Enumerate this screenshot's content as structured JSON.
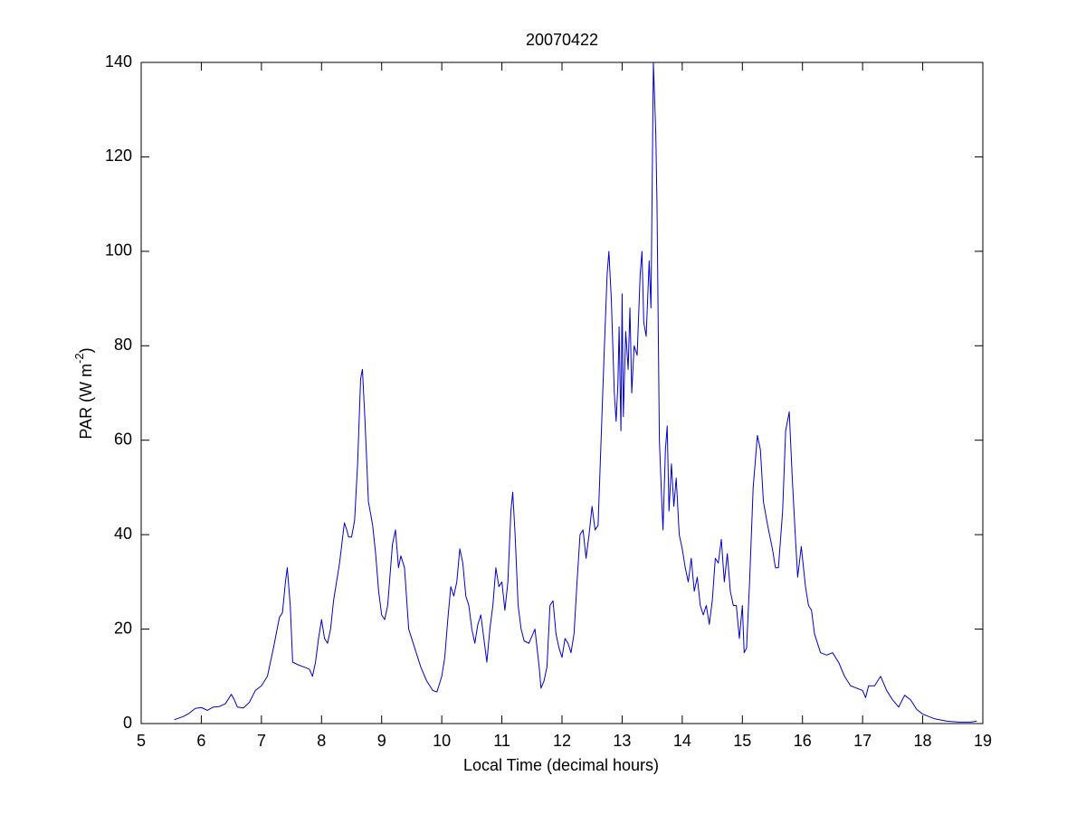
{
  "chart_data": {
    "type": "line",
    "title": "20070422",
    "xlabel": "Local Time (decimal hours)",
    "ylabel": {
      "base": "PAR (W m",
      "sup": "-2",
      "close": ")"
    },
    "xlim": [
      5,
      19
    ],
    "xticks": [
      5,
      6,
      7,
      8,
      9,
      10,
      11,
      12,
      13,
      14,
      15,
      16,
      17,
      18,
      19
    ],
    "ylim": [
      0,
      140
    ],
    "yticks": [
      0,
      20,
      40,
      60,
      80,
      100,
      120,
      140
    ],
    "grid": false,
    "color": "#0000cc",
    "x": [
      5.55,
      5.7,
      5.8,
      5.9,
      6.0,
      6.1,
      6.2,
      6.3,
      6.4,
      6.5,
      6.55,
      6.6,
      6.7,
      6.8,
      6.9,
      7.0,
      7.1,
      7.2,
      7.3,
      7.35,
      7.4,
      7.43,
      7.48,
      7.52,
      7.6,
      7.7,
      7.8,
      7.85,
      7.9,
      7.95,
      8.0,
      8.05,
      8.1,
      8.15,
      8.2,
      8.3,
      8.38,
      8.42,
      8.45,
      8.5,
      8.55,
      8.6,
      8.65,
      8.68,
      8.72,
      8.78,
      8.85,
      8.9,
      8.95,
      9.0,
      9.05,
      9.1,
      9.18,
      9.23,
      9.28,
      9.32,
      9.38,
      9.45,
      9.55,
      9.65,
      9.75,
      9.85,
      9.92,
      10.0,
      10.05,
      10.1,
      10.15,
      10.2,
      10.25,
      10.3,
      10.35,
      10.4,
      10.45,
      10.5,
      10.55,
      10.6,
      10.65,
      10.7,
      10.75,
      10.8,
      10.85,
      10.9,
      10.95,
      11.0,
      11.05,
      11.1,
      11.15,
      11.18,
      11.22,
      11.27,
      11.32,
      11.37,
      11.45,
      11.55,
      11.62,
      11.65,
      11.7,
      11.75,
      11.8,
      11.85,
      11.9,
      11.95,
      12.0,
      12.05,
      12.1,
      12.15,
      12.2,
      12.25,
      12.3,
      12.35,
      12.4,
      12.45,
      12.5,
      12.55,
      12.6,
      12.65,
      12.7,
      12.75,
      12.78,
      12.82,
      12.87,
      12.9,
      12.93,
      12.95,
      12.98,
      13.0,
      13.02,
      13.06,
      13.1,
      13.13,
      13.16,
      13.2,
      13.25,
      13.3,
      13.33,
      13.36,
      13.4,
      13.45,
      13.48,
      13.52,
      13.56,
      13.58,
      13.62,
      13.65,
      13.68,
      13.72,
      13.75,
      13.78,
      13.82,
      13.86,
      13.9,
      13.95,
      14.0,
      14.05,
      14.1,
      14.15,
      14.2,
      14.25,
      14.3,
      14.35,
      14.4,
      14.45,
      14.5,
      14.55,
      14.6,
      14.65,
      14.7,
      14.75,
      14.8,
      14.85,
      14.9,
      14.95,
      15.0,
      15.03,
      15.07,
      15.12,
      15.18,
      15.25,
      15.3,
      15.35,
      15.42,
      15.5,
      15.55,
      15.6,
      15.67,
      15.72,
      15.78,
      15.83,
      15.88,
      15.92,
      15.98,
      16.05,
      16.1,
      16.15,
      16.2,
      16.3,
      16.4,
      16.5,
      16.6,
      16.7,
      16.8,
      16.9,
      17.0,
      17.05,
      17.1,
      17.2,
      17.3,
      17.4,
      17.5,
      17.6,
      17.7,
      17.8,
      17.9,
      18.0,
      18.2,
      18.4,
      18.6,
      18.8,
      18.9
    ],
    "values": [
      0.8,
      1.5,
      2.2,
      3.2,
      3.4,
      2.8,
      3.5,
      3.6,
      4.2,
      6.2,
      5,
      3.5,
      3.3,
      4.5,
      7,
      8,
      10,
      16,
      22.5,
      23.5,
      30,
      33,
      25,
      13,
      12.5,
      12,
      11.5,
      10,
      13,
      18,
      22,
      18,
      17,
      20,
      26,
      34,
      42.5,
      41,
      39.5,
      39.5,
      43,
      55,
      73,
      75,
      65,
      47,
      42,
      36,
      28,
      23,
      22,
      25,
      38,
      41,
      33,
      35.5,
      33,
      20,
      16,
      12,
      9,
      7,
      6.7,
      10,
      14,
      22,
      29,
      27,
      30,
      37,
      34,
      27,
      25,
      20,
      17,
      21,
      23,
      18,
      13,
      20,
      25,
      33,
      29,
      30,
      24,
      30,
      45,
      49,
      40,
      25,
      20,
      17.5,
      17,
      20,
      12,
      7.5,
      9,
      12,
      25,
      26,
      19,
      16,
      14,
      18,
      17,
      15,
      19,
      30,
      40,
      41,
      35,
      40,
      46,
      41,
      42,
      60,
      78,
      95,
      100,
      90,
      70,
      64,
      72,
      84,
      62,
      91,
      65,
      83,
      75,
      88,
      70,
      80,
      78,
      95,
      100,
      85,
      82,
      98,
      88,
      140,
      125,
      110,
      60,
      50,
      41,
      58,
      63,
      45,
      55,
      46,
      52,
      40,
      37,
      33,
      30,
      35,
      28,
      31,
      25,
      23,
      25,
      21,
      26,
      35,
      34,
      39,
      30,
      36,
      28,
      25,
      25,
      18,
      25,
      15,
      16,
      30,
      50,
      61,
      58,
      47,
      42,
      37,
      33,
      33,
      45,
      62,
      66,
      52,
      40,
      31,
      37.5,
      29,
      25,
      24,
      19,
      15,
      14.5,
      15,
      13,
      10,
      8,
      7.5,
      7,
      5.5,
      8,
      8,
      10,
      7,
      5,
      3.5,
      6,
      5,
      3,
      2,
      1,
      0.5,
      0.3,
      0.3,
      0.5
    ]
  }
}
